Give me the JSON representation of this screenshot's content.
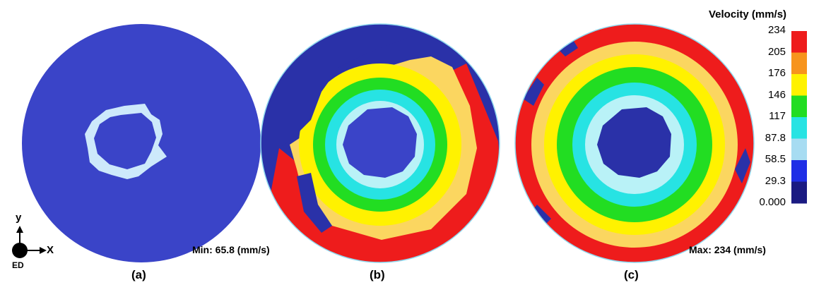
{
  "legend": {
    "title": "Velocity (mm/s)",
    "ticks": [
      "234",
      "205",
      "176",
      "146",
      "117",
      "87.8",
      "58.5",
      "29.3",
      "0.000"
    ],
    "colors": [
      "#ee1c1c",
      "#f7941d",
      "#fff200",
      "#22dd22",
      "#27e3e3",
      "#a7dcf2",
      "#1f2ee6",
      "#1a1a82"
    ]
  },
  "panels": [
    {
      "label": "(a)",
      "stat": "Min: 65.8 (mm/s)"
    },
    {
      "label": "(b)",
      "stat": ""
    },
    {
      "label": "(c)",
      "stat": "Max: 234 (mm/s)"
    }
  ],
  "axes": {
    "y": "y",
    "x": "X",
    "origin": "ED"
  },
  "colors": {
    "low_blue": "#3a44c8",
    "dark_blue": "#2a31a8",
    "red": "#ee1c1c",
    "orange_yellow": "#fbd660",
    "yellow": "#fff200",
    "green": "#22dd22",
    "cyan": "#27e3e3",
    "light_cyan": "#b9f2f7",
    "light_blue_speck": "#cde9fb"
  }
}
